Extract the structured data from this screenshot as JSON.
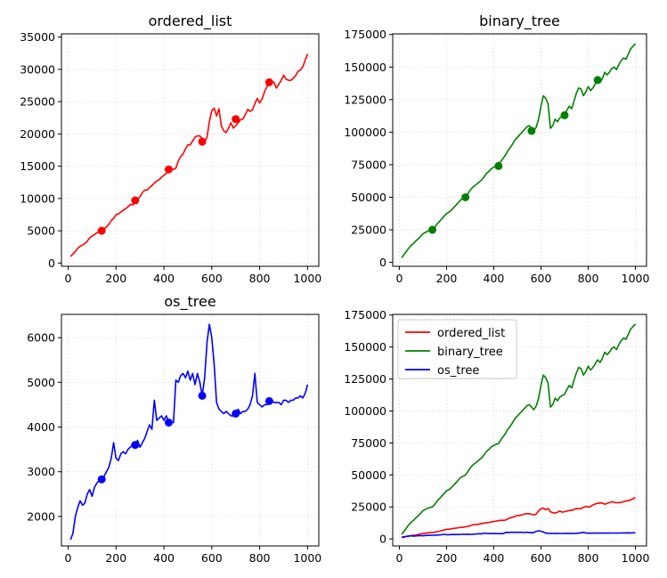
{
  "chart_data": [
    {
      "type": "line",
      "title": "ordered_list",
      "xlim": [
        -28,
        1047
      ],
      "ylim": [
        -500,
        35500
      ],
      "xticks": [
        0,
        200,
        400,
        600,
        800,
        1000
      ],
      "yticks": [
        0,
        5000,
        10000,
        15000,
        20000,
        25000,
        30000,
        35000
      ],
      "xtick_labels": [
        "0",
        "200",
        "400",
        "600",
        "800",
        "1000"
      ],
      "ytick_labels": [
        "0",
        "5000",
        "10000",
        "15000",
        "20000",
        "25000",
        "30000",
        "35000"
      ],
      "grid": true,
      "series": [
        {
          "color": "#ff0000",
          "x": [
            10,
            20,
            30,
            40,
            50,
            60,
            70,
            80,
            90,
            100,
            110,
            120,
            130,
            140,
            150,
            160,
            170,
            180,
            190,
            200,
            210,
            220,
            230,
            240,
            250,
            260,
            270,
            280,
            290,
            300,
            310,
            320,
            330,
            340,
            350,
            360,
            370,
            380,
            390,
            400,
            410,
            420,
            430,
            440,
            450,
            460,
            470,
            480,
            490,
            500,
            510,
            520,
            530,
            540,
            550,
            560,
            570,
            580,
            590,
            600,
            610,
            620,
            630,
            640,
            650,
            660,
            670,
            680,
            690,
            700,
            710,
            720,
            730,
            740,
            750,
            760,
            770,
            780,
            790,
            800,
            810,
            820,
            830,
            840,
            850,
            860,
            870,
            880,
            890,
            900,
            910,
            920,
            930,
            940,
            950,
            960,
            970,
            980,
            990,
            1000
          ],
          "y": [
            1000,
            1400,
            1800,
            2300,
            2600,
            2800,
            3000,
            3400,
            3900,
            4200,
            4400,
            4700,
            4900,
            5000,
            5300,
            5600,
            6000,
            6600,
            6900,
            7500,
            7600,
            7900,
            8200,
            8400,
            8700,
            9100,
            9000,
            9500,
            9800,
            10300,
            10900,
            11300,
            11300,
            11700,
            12000,
            12400,
            12700,
            12900,
            13300,
            13600,
            13900,
            14200,
            14600,
            14500,
            14700,
            15800,
            16500,
            16900,
            17700,
            18300,
            18300,
            18900,
            19500,
            19700,
            19700,
            19300,
            18800,
            19500,
            21900,
            23600,
            24000,
            22800,
            23900,
            21200,
            20500,
            20200,
            20900,
            21700,
            20900,
            21300,
            21700,
            22200,
            22300,
            23000,
            23800,
            23500,
            23700,
            24700,
            25500,
            24800,
            25400,
            26500,
            27300,
            27800,
            28100,
            28000,
            27100,
            27700,
            28300,
            29100,
            28500,
            28300,
            28300,
            28600,
            29000,
            29700,
            29900,
            30400,
            31400,
            32400
          ],
          "markers": [
            [
              140,
              5000
            ],
            [
              280,
              9700
            ],
            [
              420,
              14500
            ],
            [
              560,
              18800
            ],
            [
              700,
              22300
            ],
            [
              840,
              28000
            ]
          ]
        }
      ]
    },
    {
      "type": "line",
      "title": "binary_tree",
      "xlim": [
        -28,
        1047
      ],
      "ylim": [
        -3000,
        175500
      ],
      "xticks": [
        0,
        200,
        400,
        600,
        800,
        1000
      ],
      "yticks": [
        0,
        25000,
        50000,
        75000,
        100000,
        125000,
        150000,
        175000
      ],
      "xtick_labels": [
        "0",
        "200",
        "400",
        "600",
        "800",
        "1000"
      ],
      "ytick_labels": [
        "0",
        "25000",
        "50000",
        "75000",
        "100000",
        "125000",
        "150000",
        "175000"
      ],
      "grid": true,
      "series": [
        {
          "color": "#008000",
          "x": [
            10,
            20,
            30,
            40,
            50,
            60,
            70,
            80,
            90,
            100,
            110,
            120,
            130,
            140,
            150,
            160,
            170,
            180,
            190,
            200,
            210,
            220,
            230,
            240,
            250,
            260,
            270,
            280,
            290,
            300,
            310,
            320,
            330,
            340,
            350,
            360,
            370,
            380,
            390,
            400,
            410,
            420,
            430,
            440,
            450,
            460,
            470,
            480,
            490,
            500,
            510,
            520,
            530,
            540,
            550,
            560,
            570,
            580,
            590,
            600,
            610,
            620,
            630,
            640,
            650,
            660,
            670,
            680,
            690,
            700,
            710,
            720,
            730,
            740,
            750,
            760,
            770,
            780,
            790,
            800,
            810,
            820,
            830,
            840,
            850,
            860,
            870,
            880,
            890,
            900,
            910,
            920,
            930,
            940,
            950,
            960,
            970,
            980,
            990,
            1000
          ],
          "y": [
            3500,
            6000,
            8500,
            11000,
            13000,
            14500,
            16500,
            18000,
            20000,
            22000,
            23000,
            24000,
            24500,
            25000,
            27000,
            29500,
            31500,
            33500,
            35500,
            37500,
            38500,
            40000,
            42000,
            44000,
            46000,
            48000,
            49000,
            50000,
            52500,
            55500,
            57500,
            59000,
            60500,
            62000,
            63500,
            66000,
            68500,
            70000,
            72000,
            73000,
            74000,
            74500,
            77500,
            80000,
            82500,
            86000,
            88000,
            91000,
            94000,
            96000,
            98000,
            100000,
            102000,
            104000,
            105000,
            103000,
            101000,
            104000,
            110000,
            120000,
            128000,
            126000,
            122000,
            103000,
            105000,
            110000,
            108000,
            111000,
            112000,
            113000,
            117000,
            120000,
            118000,
            124000,
            130000,
            134000,
            133000,
            128000,
            131000,
            135000,
            132000,
            134000,
            137000,
            140000,
            138000,
            141000,
            146000,
            144000,
            146000,
            149000,
            150000,
            148000,
            152000,
            155000,
            157000,
            156000,
            160000,
            164000,
            166000,
            168000
          ],
          "markers": [
            [
              140,
              25000
            ],
            [
              280,
              50000
            ],
            [
              420,
              74000
            ],
            [
              560,
              101000
            ],
            [
              700,
              113000
            ],
            [
              840,
              140000
            ]
          ]
        }
      ]
    },
    {
      "type": "line",
      "title": "os_tree",
      "xlim": [
        -28,
        1047
      ],
      "ylim": [
        1340,
        6520
      ],
      "xticks": [
        0,
        200,
        400,
        600,
        800,
        1000
      ],
      "yticks": [
        2000,
        3000,
        4000,
        5000,
        6000
      ],
      "xtick_labels": [
        "0",
        "200",
        "400",
        "600",
        "800",
        "1000"
      ],
      "ytick_labels": [
        "2000",
        "3000",
        "4000",
        "5000",
        "6000"
      ],
      "grid": true,
      "series": [
        {
          "color": "#0000ff",
          "x": [
            10,
            20,
            30,
            40,
            50,
            60,
            70,
            80,
            90,
            100,
            110,
            120,
            130,
            140,
            150,
            160,
            170,
            180,
            190,
            200,
            210,
            220,
            230,
            240,
            250,
            260,
            270,
            280,
            290,
            300,
            310,
            320,
            330,
            340,
            350,
            360,
            370,
            380,
            390,
            400,
            410,
            420,
            430,
            440,
            450,
            460,
            470,
            480,
            490,
            500,
            510,
            520,
            530,
            540,
            550,
            560,
            570,
            580,
            590,
            600,
            610,
            620,
            630,
            640,
            650,
            660,
            670,
            680,
            690,
            700,
            710,
            720,
            730,
            740,
            750,
            760,
            770,
            780,
            790,
            800,
            810,
            820,
            830,
            840,
            850,
            860,
            870,
            880,
            890,
            900,
            910,
            920,
            930,
            940,
            950,
            960,
            970,
            980,
            990,
            1000
          ],
          "y": [
            1480,
            1620,
            2000,
            2200,
            2350,
            2250,
            2300,
            2500,
            2600,
            2450,
            2650,
            2750,
            2800,
            2830,
            2900,
            3000,
            3100,
            3300,
            3650,
            3300,
            3250,
            3400,
            3450,
            3400,
            3500,
            3550,
            3600,
            3600,
            3700,
            3550,
            3650,
            3750,
            3900,
            4050,
            3950,
            4600,
            4150,
            4200,
            4250,
            4150,
            4250,
            4100,
            4100,
            4100,
            5050,
            5000,
            5150,
            5200,
            5100,
            5250,
            5050,
            5200,
            4950,
            5200,
            5000,
            4700,
            5100,
            5900,
            6300,
            6000,
            5400,
            4550,
            4400,
            4350,
            4300,
            4350,
            4300,
            4250,
            4250,
            4300,
            4400,
            4300,
            4350,
            4350,
            4400,
            4500,
            4700,
            5200,
            4550,
            4500,
            4450,
            4500,
            4500,
            4550,
            4600,
            4550,
            4550,
            4550,
            4500,
            4600,
            4600,
            4550,
            4600,
            4600,
            4650,
            4650,
            4700,
            4650,
            4750,
            4950
          ],
          "markers": [
            [
              140,
              2830
            ],
            [
              280,
              3600
            ],
            [
              420,
              4100
            ],
            [
              560,
              4700
            ],
            [
              700,
              4300
            ],
            [
              840,
              4580
            ]
          ]
        }
      ]
    },
    {
      "type": "line",
      "title": "",
      "xlim": [
        -28,
        1047
      ],
      "ylim": [
        -5500,
        175500
      ],
      "xticks": [
        0,
        200,
        400,
        600,
        800,
        1000
      ],
      "yticks": [
        0,
        25000,
        50000,
        75000,
        100000,
        125000,
        150000,
        175000
      ],
      "xtick_labels": [
        "0",
        "200",
        "400",
        "600",
        "800",
        "1000"
      ],
      "ytick_labels": [
        "0",
        "25000",
        "50000",
        "75000",
        "100000",
        "125000",
        "150000",
        "175000"
      ],
      "grid": true,
      "legend": "top-left",
      "series": [
        {
          "name": "ordered_list",
          "color": "#ff0000",
          "ref": 0
        },
        {
          "name": "binary_tree",
          "color": "#008000",
          "ref": 1
        },
        {
          "name": "os_tree",
          "color": "#0000ff",
          "ref": 2
        }
      ]
    }
  ]
}
